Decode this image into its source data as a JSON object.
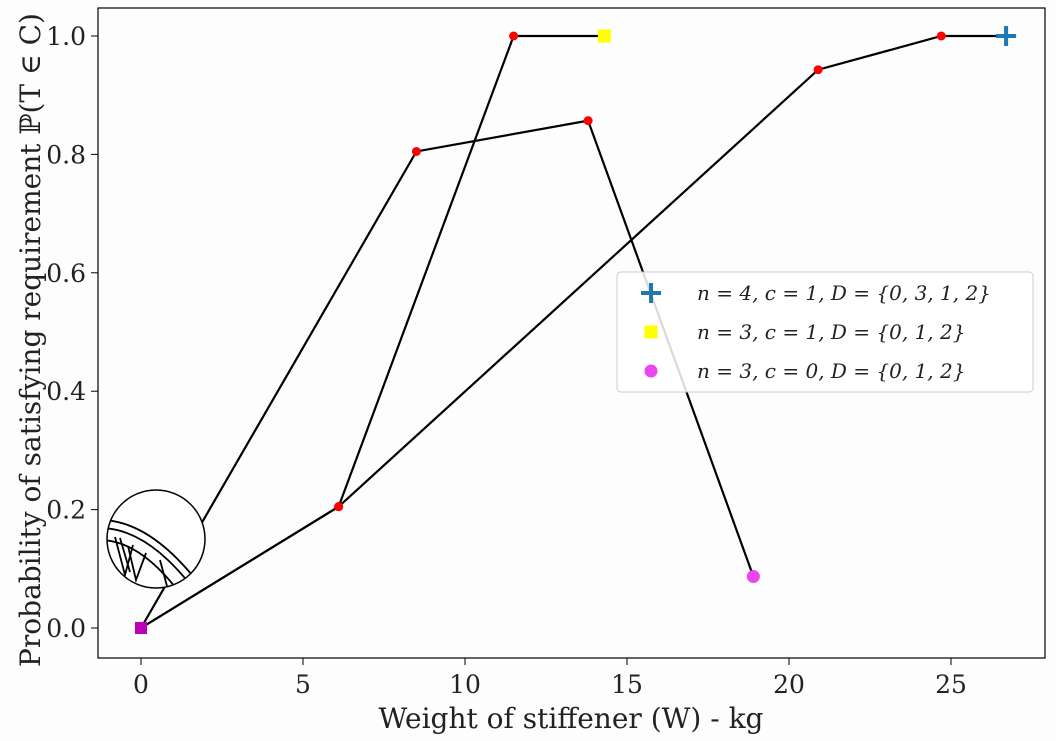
{
  "chart_data": {
    "type": "line",
    "title": "",
    "xlabel": "Weight of stiffener (W) - kg",
    "ylabel": "Probability of satisfying requirement ℙ(T ∈ C)",
    "xlim": [
      -1.3,
      28.0
    ],
    "ylim": [
      -0.05,
      1.05
    ],
    "x_ticks": [
      0,
      5,
      10,
      15,
      20,
      25
    ],
    "x_tick_labels": [
      "0",
      "5",
      "10",
      "15",
      "20",
      "25"
    ],
    "y_ticks": [
      0.0,
      0.2,
      0.4,
      0.6,
      0.8,
      1.0
    ],
    "y_tick_labels": [
      "0.0",
      "0.2",
      "0.4",
      "0.6",
      "0.8",
      "1.0"
    ],
    "grid": false,
    "legend_position": "center-right",
    "series": [
      {
        "name": "n = 4,  c = 1,  D = {0,  3,  1,  2}",
        "color": "#1f77b4",
        "end_marker": "plus",
        "points": [
          [
            0,
            0.0
          ],
          [
            6.1,
            0.205
          ],
          [
            20.9,
            0.943
          ],
          [
            24.7,
            1.0
          ],
          [
            26.7,
            1.0
          ]
        ]
      },
      {
        "name": "n = 3,  c = 1,  D = {0,  1,  2}",
        "color": "#ffff00",
        "end_marker": "square",
        "points": [
          [
            0,
            0.0
          ],
          [
            6.1,
            0.205
          ],
          [
            11.5,
            1.0
          ],
          [
            14.3,
            1.0
          ]
        ]
      },
      {
        "name": "n = 3,  c = 0,  D = {0,  1,  2}",
        "color": "#ee44ee",
        "end_marker": "circle",
        "points": [
          [
            0,
            0.0
          ],
          [
            8.5,
            0.805
          ],
          [
            13.8,
            0.857
          ],
          [
            18.9,
            0.087
          ]
        ]
      }
    ],
    "start_marker_color": "#bb00bb",
    "intermediate_marker_color": "#ff0000",
    "line_color": "#000000"
  }
}
